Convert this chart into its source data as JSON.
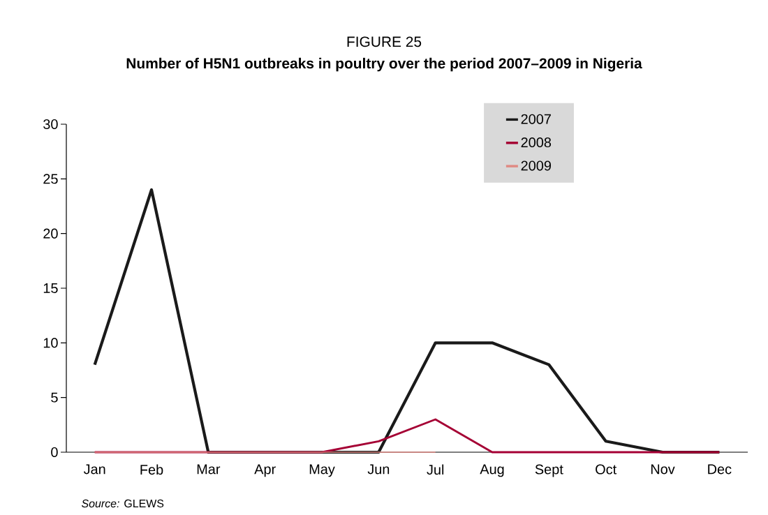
{
  "chart_data": {
    "type": "line",
    "title": "FIGURE 25",
    "subtitle": "Number of H5N1 outbreaks in poultry over the period 2007–2009 in Nigeria",
    "categories": [
      "Jan",
      "Feb",
      "Mar",
      "Apr",
      "May",
      "Jun",
      "Jul",
      "Aug",
      "Sept",
      "Oct",
      "Nov",
      "Dec"
    ],
    "series": [
      {
        "name": "2007",
        "color": "#1a1a1a",
        "values": [
          8,
          24,
          0,
          0,
          0,
          0,
          10,
          10,
          8,
          1,
          0,
          0
        ]
      },
      {
        "name": "2008",
        "color": "#a50034",
        "values": [
          0,
          0,
          0,
          0,
          0,
          1,
          3,
          0,
          0,
          0,
          0,
          0
        ]
      },
      {
        "name": "2009",
        "color": "#e08a84",
        "values": [
          0,
          0,
          0,
          0,
          0,
          0,
          0,
          null,
          null,
          null,
          null,
          null
        ]
      }
    ],
    "ylim": [
      0,
      30
    ],
    "yticks": [
      0,
      5,
      10,
      15,
      20,
      25,
      30
    ],
    "grid": false,
    "legend": "top right",
    "marker": "none",
    "line_style": "solid",
    "annotations": [
      "*Source:* GLEWS"
    ]
  }
}
